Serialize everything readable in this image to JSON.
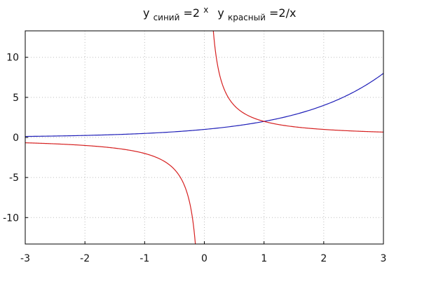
{
  "title": {
    "part1_base": "y",
    "part1_sub": "синий",
    "part1_eq": "=2",
    "part1_sup": "x",
    "part2_base": "y",
    "part2_sub": "красный",
    "part2_eq": "=2/x"
  },
  "chart_data": {
    "type": "line",
    "title": "yсиний=2x yкрасный=2/x",
    "xlabel": "",
    "ylabel": "",
    "xlim": [
      -3,
      3
    ],
    "ylim": [
      -13.3,
      13.3
    ],
    "x_ticks": [
      -3,
      -2,
      -1,
      0,
      1,
      2,
      3
    ],
    "y_ticks": [
      -10,
      -5,
      0,
      5,
      10
    ],
    "x_tick_labels": [
      "-3",
      "-2",
      "-1",
      "0",
      "1",
      "2",
      "3"
    ],
    "y_tick_labels": [
      "-10",
      "-5",
      "0",
      "5",
      "10"
    ],
    "grid": true,
    "series": [
      {
        "key": "blue",
        "formula": "2^x",
        "color": "#1f1fb8",
        "x": [
          -3,
          -2.5,
          -2,
          -1.5,
          -1,
          -0.5,
          0,
          0.5,
          1,
          1.5,
          2,
          2.5,
          3
        ],
        "y": [
          0.125,
          0.177,
          0.25,
          0.354,
          0.5,
          0.707,
          1,
          1.414,
          2,
          2.828,
          4,
          5.657,
          8
        ]
      },
      {
        "key": "red",
        "formula": "2/x",
        "color": "#d62020",
        "x": [
          -3,
          -2.5,
          -2,
          -1.5,
          -1,
          -0.5,
          -0.25,
          -0.15,
          0.15,
          0.25,
          0.5,
          1,
          1.5,
          2,
          2.5,
          3
        ],
        "y": [
          -0.667,
          -0.8,
          -1,
          -1.333,
          -2,
          -4,
          -8,
          -13.3,
          13.3,
          8,
          4,
          2,
          1.333,
          1,
          0.8,
          0.667
        ]
      }
    ]
  },
  "colors": {
    "frame": "#000000",
    "grid": "#bdbdbd"
  }
}
